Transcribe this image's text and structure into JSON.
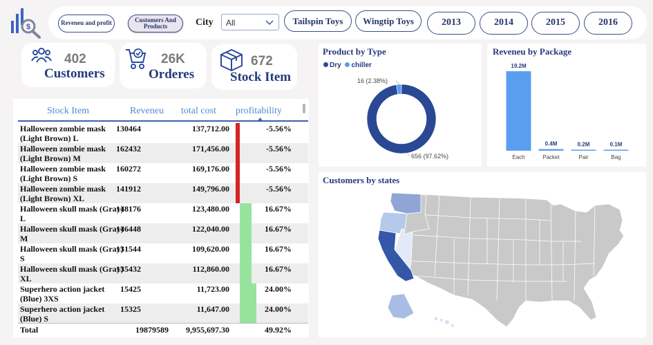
{
  "filters": {
    "measure_buttons": [
      {
        "label": "Reveneu and profit",
        "active": false
      },
      {
        "label": "Customers And Products",
        "active": true
      }
    ],
    "city_label": "City",
    "city_value": "All",
    "brand_buttons": [
      "Tailspin Toys",
      "Wingtip Toys"
    ],
    "year_buttons": [
      "2013",
      "2014",
      "2015",
      "2016"
    ]
  },
  "kpis": [
    {
      "value": "402",
      "label": "Customers",
      "icon": "users-icon"
    },
    {
      "value": "26K",
      "label": "Orderes",
      "icon": "cart-icon"
    },
    {
      "value": "672",
      "label": "Stock Item",
      "icon": "box-icon"
    }
  ],
  "table": {
    "headers": {
      "item": "Stock Item",
      "revenue": "Reveneu",
      "cost": "total cost",
      "profit": "profitability"
    },
    "rows": [
      {
        "item": "Halloween zombie mask (Light Brown) L",
        "revenue": "130464",
        "cost": "137,712.00",
        "profit": "-5.56%",
        "profit_value": -5.56
      },
      {
        "item": "Halloween zombie mask (Light Brown) M",
        "revenue": "162432",
        "cost": "171,456.00",
        "profit": "-5.56%",
        "profit_value": -5.56
      },
      {
        "item": "Halloween zombie mask (Light Brown) S",
        "revenue": "160272",
        "cost": "169,176.00",
        "profit": "-5.56%",
        "profit_value": -5.56
      },
      {
        "item": "Halloween zombie mask (Light Brown) XL",
        "revenue": "141912",
        "cost": "149,796.00",
        "profit": "-5.56%",
        "profit_value": -5.56
      },
      {
        "item": "Halloween skull mask (Gray) L",
        "revenue": "148176",
        "cost": "123,480.00",
        "profit": "16.67%",
        "profit_value": 16.67
      },
      {
        "item": "Halloween skull mask (Gray) M",
        "revenue": "146448",
        "cost": "122,040.00",
        "profit": "16.67%",
        "profit_value": 16.67
      },
      {
        "item": "Halloween skull mask (Gray) S",
        "revenue": "131544",
        "cost": "109,620.00",
        "profit": "16.67%",
        "profit_value": 16.67
      },
      {
        "item": "Halloween skull mask (Gray) XL",
        "revenue": "135432",
        "cost": "112,860.00",
        "profit": "16.67%",
        "profit_value": 16.67
      },
      {
        "item": "Superhero action jacket (Blue) 3XS",
        "revenue": "15425",
        "cost": "11,723.00",
        "profit": "24.00%",
        "profit_value": 24.0
      },
      {
        "item": "Superhero action jacket (Blue) S",
        "revenue": "15325",
        "cost": "11,647.00",
        "profit": "24.00%",
        "profit_value": 24.0
      }
    ],
    "total": {
      "label": "Total",
      "revenue": "19879589",
      "cost": "9,955,697.30",
      "profit": "49.92%"
    },
    "colors": {
      "negative": "#d62424",
      "positive": "#96e39e",
      "header_text": "#4f8ad1"
    }
  },
  "product_type": {
    "title": "Product by Type",
    "legend": [
      {
        "name": "Dry",
        "color": "#2a4894"
      },
      {
        "name": "chiller",
        "color": "#5b9ef0"
      }
    ],
    "chart_data": {
      "type": "pie",
      "labels": [
        "Dry",
        "chiller"
      ],
      "values": [
        656,
        16
      ],
      "percent_labels": [
        "656 (97.62%)",
        "16 (2.38%)"
      ]
    }
  },
  "package": {
    "title": "Reveneu by Package",
    "chart_data": {
      "type": "bar",
      "categories": [
        "Each",
        "Packet",
        "Pair",
        "Bag"
      ],
      "values": [
        19.2,
        0.4,
        0.2,
        0.1
      ],
      "value_labels": [
        "19.2M",
        "0.4M",
        "0.2M",
        "0.1M"
      ],
      "bar_color": "#5b9ef0"
    }
  },
  "map": {
    "title": "Customers by states"
  }
}
